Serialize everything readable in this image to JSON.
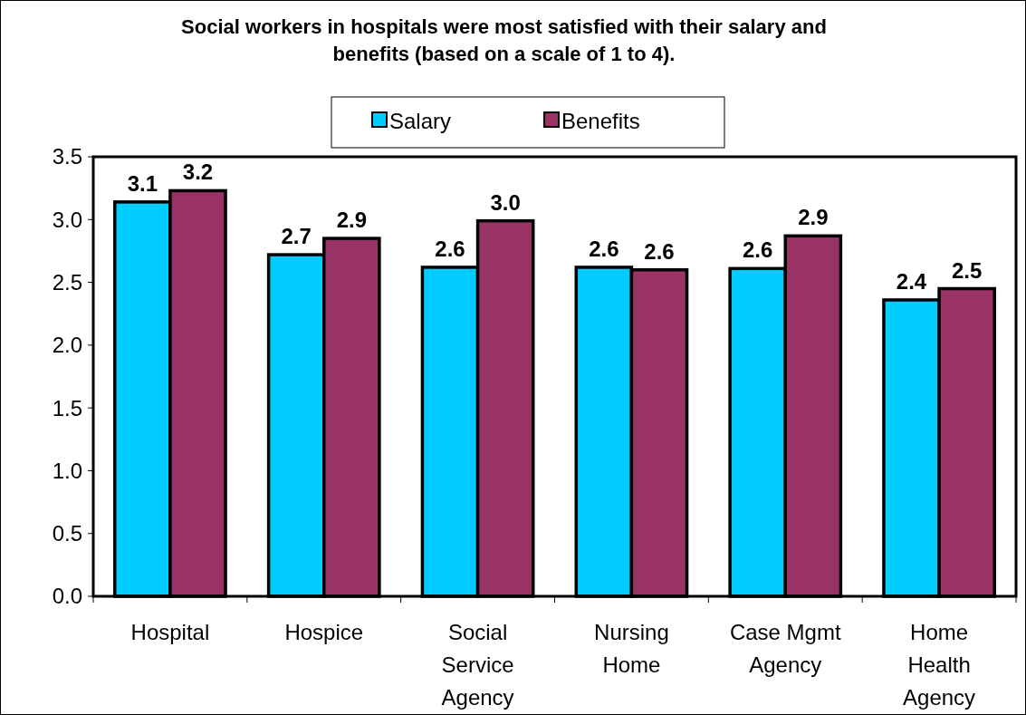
{
  "chart_data": {
    "type": "bar",
    "title": "Social workers in hospitals were most satisfied with their salary and benefits (based on a scale of 1 to 4).",
    "categories": [
      "Hospital",
      "Hospice",
      "Social Service Agency",
      "Nursing Home",
      "Case Mgmt Agency",
      "Home Health Agency"
    ],
    "series": [
      {
        "name": "Salary",
        "color": "#00ccff",
        "values": [
          3.14,
          2.72,
          2.62,
          2.62,
          2.61,
          2.36
        ],
        "value_labels": [
          "3.1",
          "2.7",
          "2.6",
          "2.6",
          "2.6",
          "2.4"
        ]
      },
      {
        "name": "Benefits",
        "color": "#993366",
        "values": [
          3.23,
          2.85,
          2.99,
          2.6,
          2.87,
          2.45
        ],
        "value_labels": [
          "3.2",
          "2.9",
          "3.0",
          "2.6",
          "2.9",
          "2.5"
        ]
      }
    ],
    "ylim": [
      0,
      3.5
    ],
    "yticks": [
      {
        "value": 0,
        "label": "0.0"
      },
      0.5,
      {
        "value": 1,
        "label": "1.0"
      },
      1.5,
      {
        "value": 2,
        "label": "2.0"
      },
      2.5,
      {
        "value": 3,
        "label": "3.0"
      },
      3.5
    ],
    "legend": "top",
    "grid": false
  }
}
